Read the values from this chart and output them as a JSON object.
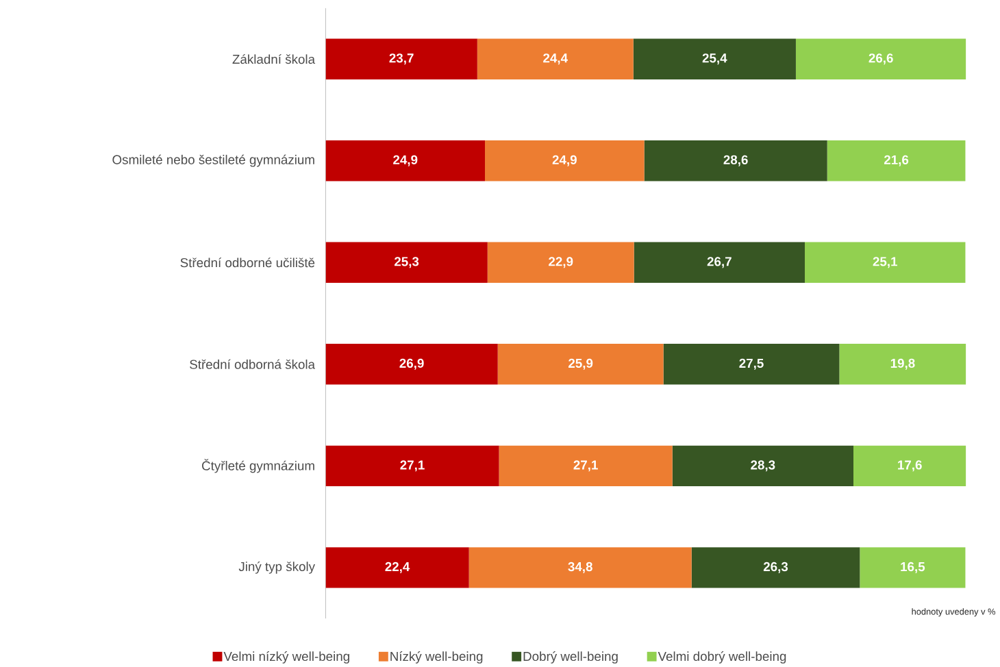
{
  "chart_data": {
    "type": "bar",
    "orientation": "horizontal",
    "stacked": true,
    "categories": [
      "Základní škola",
      "Osmileté nebo šestileté gymnázium",
      "Střední odborné učiliště",
      "Střední odborná škola",
      "Čtyřleté gymnázium",
      "Jiný typ školy"
    ],
    "series": [
      {
        "name": "Velmi nízký well-being",
        "color": "#c00000",
        "values": [
          23.7,
          24.9,
          25.3,
          26.9,
          27.1,
          22.4
        ],
        "value_labels": [
          "23,7",
          "24,9",
          "25,3",
          "26,9",
          "27,1",
          "22,4"
        ]
      },
      {
        "name": "Nízký well-being",
        "color": "#ed7d31",
        "values": [
          24.4,
          24.9,
          22.9,
          25.9,
          27.1,
          34.8
        ],
        "value_labels": [
          "24,4",
          "24,9",
          "22,9",
          "25,9",
          "27,1",
          "34,8"
        ]
      },
      {
        "name": "Dobrý well-being",
        "color": "#375623",
        "values": [
          25.4,
          28.6,
          26.7,
          27.5,
          28.3,
          26.3
        ],
        "value_labels": [
          "25,4",
          "28,6",
          "26,7",
          "27,5",
          "28,3",
          "26,3"
        ]
      },
      {
        "name": "Velmi dobrý well-being",
        "color": "#92d050",
        "values": [
          26.6,
          21.6,
          25.1,
          19.8,
          17.6,
          16.5
        ],
        "value_labels": [
          "26,6",
          "21,6",
          "25,1",
          "19,8",
          "17,6",
          "16,5"
        ]
      }
    ],
    "xlim": [
      0,
      100.1
    ],
    "tick_labels": "y",
    "legend": "bottom",
    "annotations": [
      "hodnoty uvedeny v %"
    ]
  }
}
